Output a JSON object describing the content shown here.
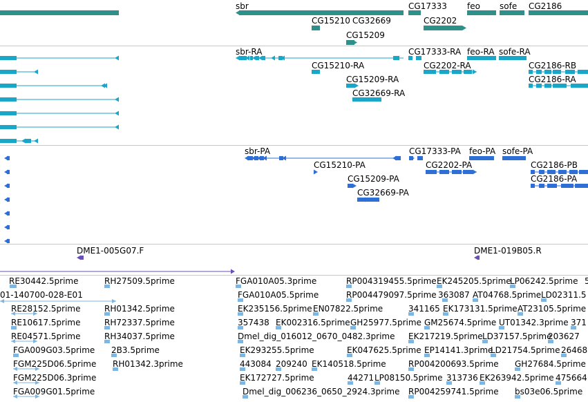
{
  "colors": {
    "gene": "#2f8f8a",
    "transcript": "#1aa6c9",
    "protein": "#2e6fd6",
    "clone": "#6a4fb8",
    "est": "#7fb6e0",
    "separator": "#c8c8c8"
  },
  "tracks": {
    "genes": {
      "labels": [
        {
          "id": "g-sbr",
          "text": "sbr"
        },
        {
          "id": "g-cg17333",
          "text": "CG17333"
        },
        {
          "id": "g-feo",
          "text": "feo"
        },
        {
          "id": "g-sofe",
          "text": "sofe"
        },
        {
          "id": "g-cg2186",
          "text": "CG2186"
        },
        {
          "id": "g-cg15210",
          "text": "CG15210"
        },
        {
          "id": "g-cg32669",
          "text": "CG32669"
        },
        {
          "id": "g-cg2202",
          "text": "CG2202"
        },
        {
          "id": "g-cg15209",
          "text": "CG15209"
        }
      ]
    },
    "transcripts": {
      "labels": [
        {
          "id": "t-sbr",
          "text": "sbr-RA"
        },
        {
          "id": "t-cg17333",
          "text": "CG17333-RA"
        },
        {
          "id": "t-feo",
          "text": "feo-RA"
        },
        {
          "id": "t-sofe",
          "text": "sofe-RA"
        },
        {
          "id": "t-cg15210",
          "text": "CG15210-RA"
        },
        {
          "id": "t-cg2202",
          "text": "CG2202-RA"
        },
        {
          "id": "t-cg2186rb",
          "text": "CG2186-RB"
        },
        {
          "id": "t-cg15209",
          "text": "CG15209-RA"
        },
        {
          "id": "t-cg2186ra",
          "text": "CG2186-RA"
        },
        {
          "id": "t-cg32669",
          "text": "CG32669-RA"
        }
      ]
    },
    "proteins": {
      "labels": [
        {
          "id": "p-sbr",
          "text": "sbr-PA"
        },
        {
          "id": "p-cg17333",
          "text": "CG17333-PA"
        },
        {
          "id": "p-feo",
          "text": "feo-PA"
        },
        {
          "id": "p-sofe",
          "text": "sofe-PA"
        },
        {
          "id": "p-cg15210",
          "text": "CG15210-PA"
        },
        {
          "id": "p-cg2202",
          "text": "CG2202-PA"
        },
        {
          "id": "p-cg2186pb",
          "text": "CG2186-PB"
        },
        {
          "id": "p-cg15209",
          "text": "CG15209-PA"
        },
        {
          "id": "p-cg2186pa",
          "text": "CG2186-PA"
        },
        {
          "id": "p-cg32669",
          "text": "CG32669-PA"
        }
      ]
    },
    "clones": {
      "labels": [
        {
          "id": "c-1",
          "text": "DME1-005G07.F"
        },
        {
          "id": "c-2",
          "text": "DME1-019B05.R"
        }
      ]
    },
    "ests": {
      "labels": [
        {
          "id": "e-01",
          "text": "RE30442.5prime"
        },
        {
          "id": "e-02",
          "text": "RH27509.5prime"
        },
        {
          "id": "e-03",
          "text": "FGA010A05.3prime"
        },
        {
          "id": "e-04",
          "text": "RP004319455.5prime"
        },
        {
          "id": "e-05",
          "text": "EK245205.5prime"
        },
        {
          "id": "e-06",
          "text": "LP06242.5prime"
        },
        {
          "id": "e-07",
          "text": "5"
        },
        {
          "id": "e-08",
          "text": "01-140700-028-E01"
        },
        {
          "id": "e-09",
          "text": "FGA010A05.5prime"
        },
        {
          "id": "e-10",
          "text": "RP004479097.5prime"
        },
        {
          "id": "e-11",
          "text": "363087"
        },
        {
          "id": "e-12",
          "text": "AT04768.5prime"
        },
        {
          "id": "e-13",
          "text": "LD02311.5"
        },
        {
          "id": "e-14",
          "text": "RE28152.5prime"
        },
        {
          "id": "e-15",
          "text": "RH01342.5prime"
        },
        {
          "id": "e-16",
          "text": "EK235156.5prime"
        },
        {
          "id": "e-17",
          "text": "EN07822.5prime"
        },
        {
          "id": "e-18",
          "text": "341165"
        },
        {
          "id": "e-19",
          "text": "EK173131.5prime"
        },
        {
          "id": "e-20",
          "text": "AT23105.5prime"
        },
        {
          "id": "e-21",
          "text": "RE10617.5prime"
        },
        {
          "id": "e-22",
          "text": "RH72337.5prime"
        },
        {
          "id": "e-23",
          "text": "357438"
        },
        {
          "id": "e-24",
          "text": "EK002316.5prime"
        },
        {
          "id": "e-25",
          "text": "GH25977.5prime"
        },
        {
          "id": "e-26",
          "text": "GM25674.5prime"
        },
        {
          "id": "e-27",
          "text": "UT01342.3prime"
        },
        {
          "id": "e-28",
          "text": "371"
        },
        {
          "id": "e-29",
          "text": "RE04571.5prime"
        },
        {
          "id": "e-30",
          "text": "RH34037.5prime"
        },
        {
          "id": "e-31",
          "text": "Dmel_dig_016012_0670_0482.3prime"
        },
        {
          "id": "e-32",
          "text": "EK217219.5prime"
        },
        {
          "id": "e-33",
          "text": "LD37157.5prime"
        },
        {
          "id": "e-34",
          "text": "203627"
        },
        {
          "id": "e-35",
          "text": "FGA009G03.5prime"
        },
        {
          "id": "e-36",
          "text": "2B3.5prime"
        },
        {
          "id": "e-37",
          "text": "EK293255.5prime"
        },
        {
          "id": "e-38",
          "text": "EK047625.5prime"
        },
        {
          "id": "e-39",
          "text": "EP14141.3prime"
        },
        {
          "id": "e-40",
          "text": "LD21754.5prime"
        },
        {
          "id": "e-41",
          "text": "26468"
        },
        {
          "id": "e-42",
          "text": "FGM225D06.5prime"
        },
        {
          "id": "e-43",
          "text": "RH01342.3prime"
        },
        {
          "id": "e-44",
          "text": "443084"
        },
        {
          "id": "e-45",
          "text": "209240"
        },
        {
          "id": "e-46",
          "text": "EK140518.5prime"
        },
        {
          "id": "e-47",
          "text": "RP004200693.5prime"
        },
        {
          "id": "e-48",
          "text": "GH27684.5prime"
        },
        {
          "id": "e-49",
          "text": "FGM225D06.3prime"
        },
        {
          "id": "e-50",
          "text": "EK172727.5prime"
        },
        {
          "id": "e-51",
          "text": "44271"
        },
        {
          "id": "e-52",
          "text": "LP08150.5prime"
        },
        {
          "id": "e-53",
          "text": "313736"
        },
        {
          "id": "e-54",
          "text": "EK263942.5prime"
        },
        {
          "id": "e-55",
          "text": "475664"
        },
        {
          "id": "e-56",
          "text": "FGA009G01.5prime"
        },
        {
          "id": "e-57",
          "text": "Dmel_dig_006236_0650_2924.3prime"
        },
        {
          "id": "e-58",
          "text": "RP004259741.5prime"
        },
        {
          "id": "e-59",
          "text": "bs03e06.5prime"
        }
      ]
    }
  }
}
